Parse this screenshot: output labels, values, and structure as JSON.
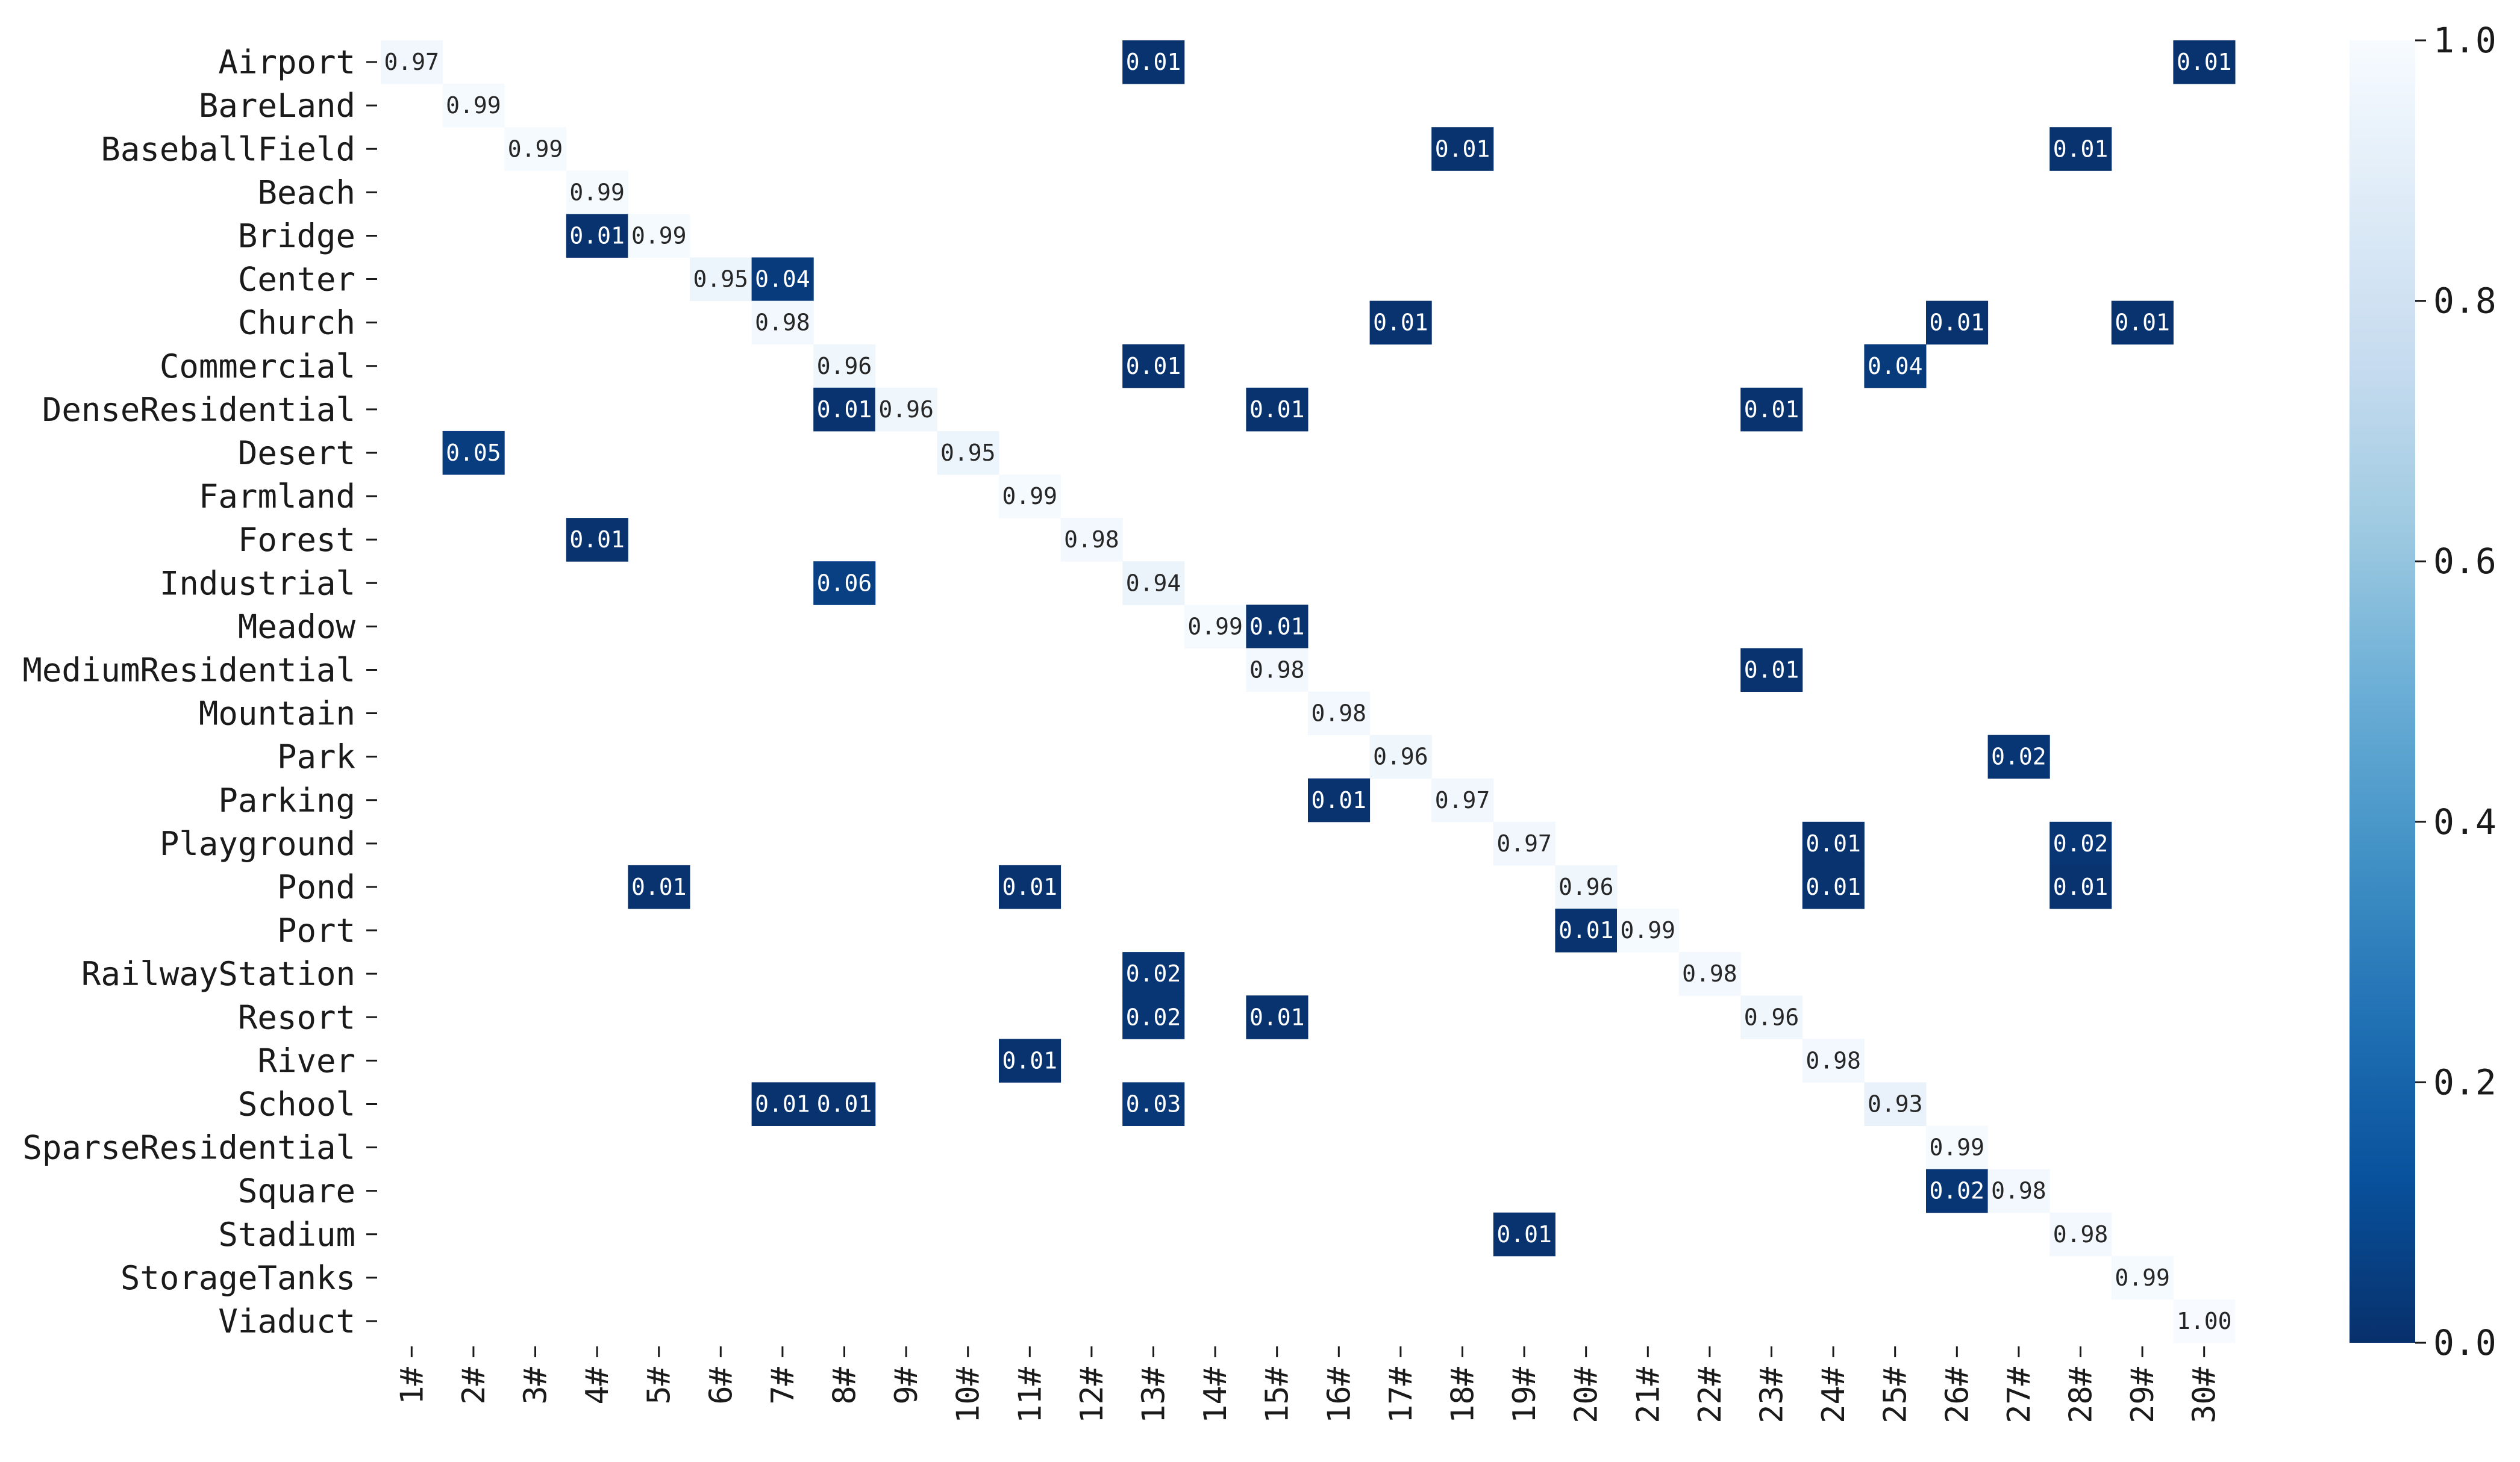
{
  "chart_data": {
    "type": "heatmap",
    "title": "",
    "xlabel": "",
    "ylabel": "",
    "colormap": "Blues (low = dark blue, high = near white)",
    "colors": {
      "low": "#08306b",
      "high": "#f7fbff"
    },
    "annotations_shown": true,
    "value_range": [
      0.0,
      1.0
    ],
    "rows": [
      "Airport",
      "BareLand",
      "BaseballField",
      "Beach",
      "Bridge",
      "Center",
      "Church",
      "Commercial",
      "DenseResidential",
      "Desert",
      "Farmland",
      "Forest",
      "Industrial",
      "Meadow",
      "MediumResidential",
      "Mountain",
      "Park",
      "Parking",
      "Playground",
      "Pond",
      "Port",
      "RailwayStation",
      "Resort",
      "River",
      "School",
      "SparseResidential",
      "Square",
      "Stadium",
      "StorageTanks",
      "Viaduct"
    ],
    "columns": [
      "1#",
      "2#",
      "3#",
      "4#",
      "5#",
      "6#",
      "7#",
      "8#",
      "9#",
      "10#",
      "11#",
      "12#",
      "13#",
      "14#",
      "15#",
      "16#",
      "17#",
      "18#",
      "19#",
      "20#",
      "21#",
      "22#",
      "23#",
      "24#",
      "25#",
      "26#",
      "27#",
      "28#",
      "29#",
      "30#"
    ],
    "cells": [
      {
        "row": "Airport",
        "col": "1#",
        "value": 0.97,
        "label": "0.97"
      },
      {
        "row": "Airport",
        "col": "13#",
        "value": 0.01,
        "label": "0.01"
      },
      {
        "row": "Airport",
        "col": "30#",
        "value": 0.01,
        "label": "0.01"
      },
      {
        "row": "BareLand",
        "col": "2#",
        "value": 0.99,
        "label": "0.99"
      },
      {
        "row": "BaseballField",
        "col": "3#",
        "value": 0.99,
        "label": "0.99"
      },
      {
        "row": "BaseballField",
        "col": "18#",
        "value": 0.01,
        "label": "0.01"
      },
      {
        "row": "BaseballField",
        "col": "28#",
        "value": 0.01,
        "label": "0.01"
      },
      {
        "row": "Beach",
        "col": "4#",
        "value": 0.99,
        "label": "0.99"
      },
      {
        "row": "Bridge",
        "col": "4#",
        "value": 0.01,
        "label": "0.01"
      },
      {
        "row": "Bridge",
        "col": "5#",
        "value": 0.99,
        "label": "0.99"
      },
      {
        "row": "Center",
        "col": "6#",
        "value": 0.95,
        "label": "0.95"
      },
      {
        "row": "Center",
        "col": "7#",
        "value": 0.04,
        "label": "0.04"
      },
      {
        "row": "Church",
        "col": "7#",
        "value": 0.98,
        "label": "0.98"
      },
      {
        "row": "Church",
        "col": "17#",
        "value": 0.01,
        "label": "0.01"
      },
      {
        "row": "Church",
        "col": "26#",
        "value": 0.01,
        "label": "0.01"
      },
      {
        "row": "Church",
        "col": "29#",
        "value": 0.01,
        "label": "0.01"
      },
      {
        "row": "Commercial",
        "col": "8#",
        "value": 0.96,
        "label": "0.96"
      },
      {
        "row": "Commercial",
        "col": "13#",
        "value": 0.01,
        "label": "0.01"
      },
      {
        "row": "Commercial",
        "col": "25#",
        "value": 0.04,
        "label": "0.04"
      },
      {
        "row": "DenseResidential",
        "col": "8#",
        "value": 0.01,
        "label": "0.01"
      },
      {
        "row": "DenseResidential",
        "col": "9#",
        "value": 0.96,
        "label": "0.96"
      },
      {
        "row": "DenseResidential",
        "col": "15#",
        "value": 0.01,
        "label": "0.01"
      },
      {
        "row": "DenseResidential",
        "col": "23#",
        "value": 0.01,
        "label": "0.01"
      },
      {
        "row": "Desert",
        "col": "2#",
        "value": 0.05,
        "label": "0.05"
      },
      {
        "row": "Desert",
        "col": "10#",
        "value": 0.95,
        "label": "0.95"
      },
      {
        "row": "Farmland",
        "col": "11#",
        "value": 0.99,
        "label": "0.99"
      },
      {
        "row": "Forest",
        "col": "4#",
        "value": 0.01,
        "label": "0.01"
      },
      {
        "row": "Forest",
        "col": "12#",
        "value": 0.98,
        "label": "0.98"
      },
      {
        "row": "Industrial",
        "col": "8#",
        "value": 0.06,
        "label": "0.06"
      },
      {
        "row": "Industrial",
        "col": "13#",
        "value": 0.94,
        "label": "0.94"
      },
      {
        "row": "Meadow",
        "col": "14#",
        "value": 0.99,
        "label": "0.99"
      },
      {
        "row": "Meadow",
        "col": "15#",
        "value": 0.01,
        "label": "0.01"
      },
      {
        "row": "MediumResidential",
        "col": "15#",
        "value": 0.98,
        "label": "0.98"
      },
      {
        "row": "MediumResidential",
        "col": "23#",
        "value": 0.01,
        "label": "0.01"
      },
      {
        "row": "Mountain",
        "col": "16#",
        "value": 0.98,
        "label": "0.98"
      },
      {
        "row": "Park",
        "col": "17#",
        "value": 0.96,
        "label": "0.96"
      },
      {
        "row": "Park",
        "col": "27#",
        "value": 0.02,
        "label": "0.02"
      },
      {
        "row": "Parking",
        "col": "16#",
        "value": 0.01,
        "label": "0.01"
      },
      {
        "row": "Parking",
        "col": "18#",
        "value": 0.97,
        "label": "0.97"
      },
      {
        "row": "Playground",
        "col": "19#",
        "value": 0.97,
        "label": "0.97"
      },
      {
        "row": "Playground",
        "col": "24#",
        "value": 0.01,
        "label": "0.01"
      },
      {
        "row": "Playground",
        "col": "28#",
        "value": 0.02,
        "label": "0.02"
      },
      {
        "row": "Pond",
        "col": "5#",
        "value": 0.01,
        "label": "0.01"
      },
      {
        "row": "Pond",
        "col": "11#",
        "value": 0.01,
        "label": "0.01"
      },
      {
        "row": "Pond",
        "col": "20#",
        "value": 0.96,
        "label": "0.96"
      },
      {
        "row": "Pond",
        "col": "24#",
        "value": 0.01,
        "label": "0.01"
      },
      {
        "row": "Pond",
        "col": "28#",
        "value": 0.01,
        "label": "0.01"
      },
      {
        "row": "Port",
        "col": "20#",
        "value": 0.01,
        "label": "0.01"
      },
      {
        "row": "Port",
        "col": "21#",
        "value": 0.99,
        "label": "0.99"
      },
      {
        "row": "RailwayStation",
        "col": "13#",
        "value": 0.02,
        "label": "0.02"
      },
      {
        "row": "RailwayStation",
        "col": "22#",
        "value": 0.98,
        "label": "0.98"
      },
      {
        "row": "Resort",
        "col": "13#",
        "value": 0.02,
        "label": "0.02"
      },
      {
        "row": "Resort",
        "col": "15#",
        "value": 0.01,
        "label": "0.01"
      },
      {
        "row": "Resort",
        "col": "23#",
        "value": 0.96,
        "label": "0.96"
      },
      {
        "row": "River",
        "col": "11#",
        "value": 0.01,
        "label": "0.01"
      },
      {
        "row": "River",
        "col": "24#",
        "value": 0.98,
        "label": "0.98"
      },
      {
        "row": "School",
        "col": "7#",
        "value": 0.01,
        "label": "0.01"
      },
      {
        "row": "School",
        "col": "8#",
        "value": 0.01,
        "label": "0.01"
      },
      {
        "row": "School",
        "col": "13#",
        "value": 0.03,
        "label": "0.03"
      },
      {
        "row": "School",
        "col": "25#",
        "value": 0.93,
        "label": "0.93"
      },
      {
        "row": "SparseResidential",
        "col": "26#",
        "value": 0.99,
        "label": "0.99"
      },
      {
        "row": "Square",
        "col": "26#",
        "value": 0.02,
        "label": "0.02"
      },
      {
        "row": "Square",
        "col": "27#",
        "value": 0.98,
        "label": "0.98"
      },
      {
        "row": "Stadium",
        "col": "19#",
        "value": 0.01,
        "label": "0.01"
      },
      {
        "row": "Stadium",
        "col": "28#",
        "value": 0.98,
        "label": "0.98"
      },
      {
        "row": "StorageTanks",
        "col": "29#",
        "value": 0.99,
        "label": "0.99"
      },
      {
        "row": "Viaduct",
        "col": "30#",
        "value": 1.0,
        "label": "1.00"
      }
    ],
    "colorbar": {
      "ticks": [
        0.0,
        0.2,
        0.4,
        0.6,
        0.8,
        1.0
      ],
      "tick_labels": [
        "0.0",
        "0.2",
        "0.4",
        "0.6",
        "0.8",
        "1.0"
      ]
    }
  }
}
